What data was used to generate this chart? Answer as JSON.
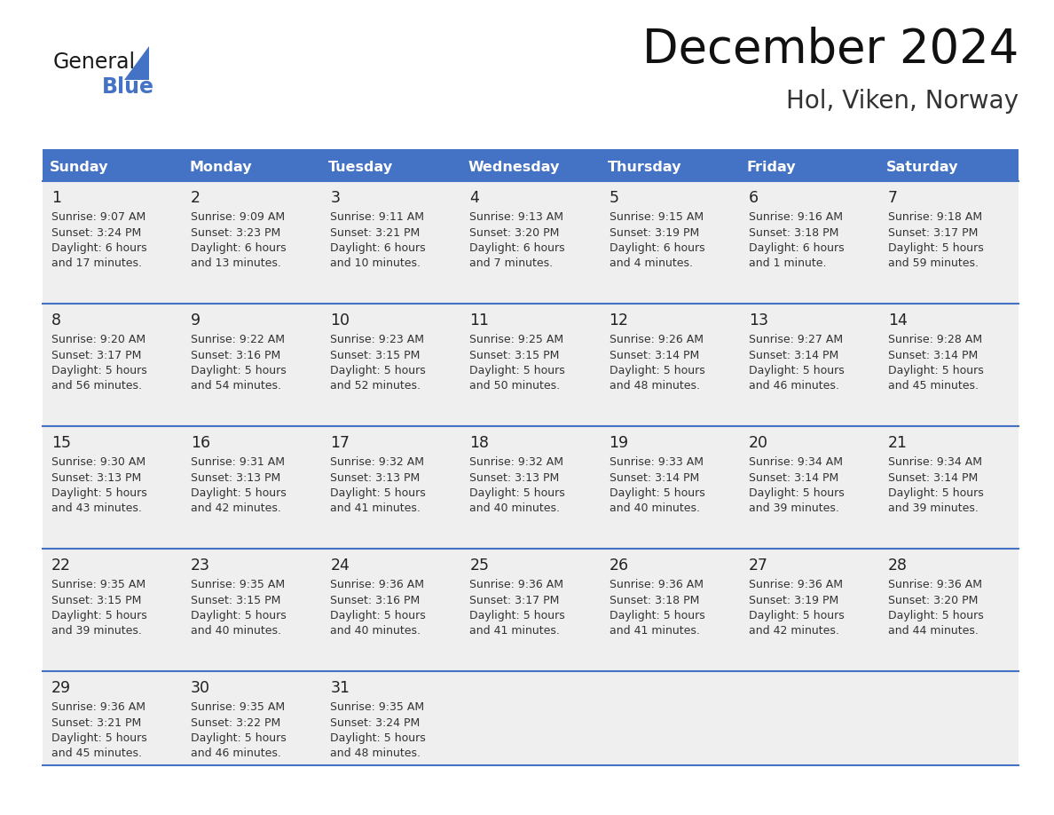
{
  "title": "December 2024",
  "subtitle": "Hol, Viken, Norway",
  "header_bg": "#4472C4",
  "header_text_color": "#FFFFFF",
  "header_days": [
    "Sunday",
    "Monday",
    "Tuesday",
    "Wednesday",
    "Thursday",
    "Friday",
    "Saturday"
  ],
  "row_bg": "#EFEFEF",
  "separator_color": "#4472C4",
  "day_text_color": "#222222",
  "info_text_color": "#333333",
  "calendar_data": [
    [
      {
        "day": "1",
        "sunrise": "9:07 AM",
        "sunset": "3:24 PM",
        "daylight1": "Daylight: 6 hours",
        "daylight2": "and 17 minutes."
      },
      {
        "day": "2",
        "sunrise": "9:09 AM",
        "sunset": "3:23 PM",
        "daylight1": "Daylight: 6 hours",
        "daylight2": "and 13 minutes."
      },
      {
        "day": "3",
        "sunrise": "9:11 AM",
        "sunset": "3:21 PM",
        "daylight1": "Daylight: 6 hours",
        "daylight2": "and 10 minutes."
      },
      {
        "day": "4",
        "sunrise": "9:13 AM",
        "sunset": "3:20 PM",
        "daylight1": "Daylight: 6 hours",
        "daylight2": "and 7 minutes."
      },
      {
        "day": "5",
        "sunrise": "9:15 AM",
        "sunset": "3:19 PM",
        "daylight1": "Daylight: 6 hours",
        "daylight2": "and 4 minutes."
      },
      {
        "day": "6",
        "sunrise": "9:16 AM",
        "sunset": "3:18 PM",
        "daylight1": "Daylight: 6 hours",
        "daylight2": "and 1 minute."
      },
      {
        "day": "7",
        "sunrise": "9:18 AM",
        "sunset": "3:17 PM",
        "daylight1": "Daylight: 5 hours",
        "daylight2": "and 59 minutes."
      }
    ],
    [
      {
        "day": "8",
        "sunrise": "9:20 AM",
        "sunset": "3:17 PM",
        "daylight1": "Daylight: 5 hours",
        "daylight2": "and 56 minutes."
      },
      {
        "day": "9",
        "sunrise": "9:22 AM",
        "sunset": "3:16 PM",
        "daylight1": "Daylight: 5 hours",
        "daylight2": "and 54 minutes."
      },
      {
        "day": "10",
        "sunrise": "9:23 AM",
        "sunset": "3:15 PM",
        "daylight1": "Daylight: 5 hours",
        "daylight2": "and 52 minutes."
      },
      {
        "day": "11",
        "sunrise": "9:25 AM",
        "sunset": "3:15 PM",
        "daylight1": "Daylight: 5 hours",
        "daylight2": "and 50 minutes."
      },
      {
        "day": "12",
        "sunrise": "9:26 AM",
        "sunset": "3:14 PM",
        "daylight1": "Daylight: 5 hours",
        "daylight2": "and 48 minutes."
      },
      {
        "day": "13",
        "sunrise": "9:27 AM",
        "sunset": "3:14 PM",
        "daylight1": "Daylight: 5 hours",
        "daylight2": "and 46 minutes."
      },
      {
        "day": "14",
        "sunrise": "9:28 AM",
        "sunset": "3:14 PM",
        "daylight1": "Daylight: 5 hours",
        "daylight2": "and 45 minutes."
      }
    ],
    [
      {
        "day": "15",
        "sunrise": "9:30 AM",
        "sunset": "3:13 PM",
        "daylight1": "Daylight: 5 hours",
        "daylight2": "and 43 minutes."
      },
      {
        "day": "16",
        "sunrise": "9:31 AM",
        "sunset": "3:13 PM",
        "daylight1": "Daylight: 5 hours",
        "daylight2": "and 42 minutes."
      },
      {
        "day": "17",
        "sunrise": "9:32 AM",
        "sunset": "3:13 PM",
        "daylight1": "Daylight: 5 hours",
        "daylight2": "and 41 minutes."
      },
      {
        "day": "18",
        "sunrise": "9:32 AM",
        "sunset": "3:13 PM",
        "daylight1": "Daylight: 5 hours",
        "daylight2": "and 40 minutes."
      },
      {
        "day": "19",
        "sunrise": "9:33 AM",
        "sunset": "3:14 PM",
        "daylight1": "Daylight: 5 hours",
        "daylight2": "and 40 minutes."
      },
      {
        "day": "20",
        "sunrise": "9:34 AM",
        "sunset": "3:14 PM",
        "daylight1": "Daylight: 5 hours",
        "daylight2": "and 39 minutes."
      },
      {
        "day": "21",
        "sunrise": "9:34 AM",
        "sunset": "3:14 PM",
        "daylight1": "Daylight: 5 hours",
        "daylight2": "and 39 minutes."
      }
    ],
    [
      {
        "day": "22",
        "sunrise": "9:35 AM",
        "sunset": "3:15 PM",
        "daylight1": "Daylight: 5 hours",
        "daylight2": "and 39 minutes."
      },
      {
        "day": "23",
        "sunrise": "9:35 AM",
        "sunset": "3:15 PM",
        "daylight1": "Daylight: 5 hours",
        "daylight2": "and 40 minutes."
      },
      {
        "day": "24",
        "sunrise": "9:36 AM",
        "sunset": "3:16 PM",
        "daylight1": "Daylight: 5 hours",
        "daylight2": "and 40 minutes."
      },
      {
        "day": "25",
        "sunrise": "9:36 AM",
        "sunset": "3:17 PM",
        "daylight1": "Daylight: 5 hours",
        "daylight2": "and 41 minutes."
      },
      {
        "day": "26",
        "sunrise": "9:36 AM",
        "sunset": "3:18 PM",
        "daylight1": "Daylight: 5 hours",
        "daylight2": "and 41 minutes."
      },
      {
        "day": "27",
        "sunrise": "9:36 AM",
        "sunset": "3:19 PM",
        "daylight1": "Daylight: 5 hours",
        "daylight2": "and 42 minutes."
      },
      {
        "day": "28",
        "sunrise": "9:36 AM",
        "sunset": "3:20 PM",
        "daylight1": "Daylight: 5 hours",
        "daylight2": "and 44 minutes."
      }
    ],
    [
      {
        "day": "29",
        "sunrise": "9:36 AM",
        "sunset": "3:21 PM",
        "daylight1": "Daylight: 5 hours",
        "daylight2": "and 45 minutes."
      },
      {
        "day": "30",
        "sunrise": "9:35 AM",
        "sunset": "3:22 PM",
        "daylight1": "Daylight: 5 hours",
        "daylight2": "and 46 minutes."
      },
      {
        "day": "31",
        "sunrise": "9:35 AM",
        "sunset": "3:24 PM",
        "daylight1": "Daylight: 5 hours",
        "daylight2": "and 48 minutes."
      },
      null,
      null,
      null,
      null
    ]
  ],
  "figsize": [
    11.88,
    9.18
  ],
  "dpi": 100
}
